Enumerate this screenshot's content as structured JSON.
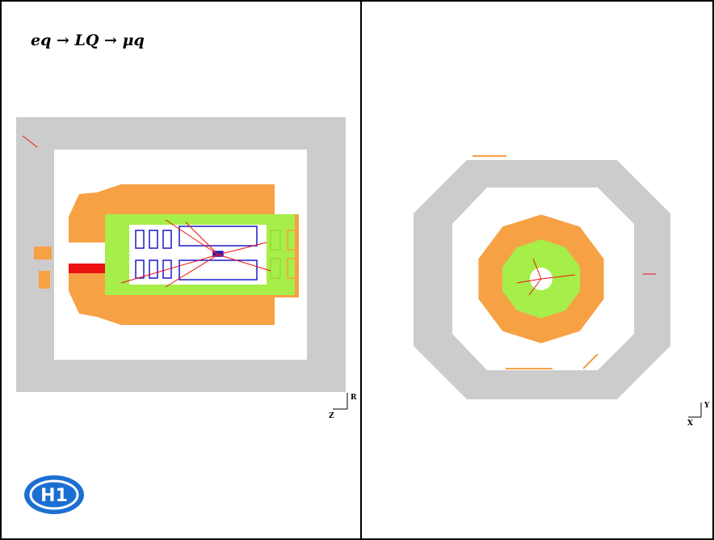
{
  "title": "eq → LQ → μq",
  "left_view": {
    "vertical_axis": "R",
    "horizontal_axis": "Z"
  },
  "right_view": {
    "vertical_axis": "Y",
    "horizontal_axis": "X"
  },
  "logo": "H1"
}
